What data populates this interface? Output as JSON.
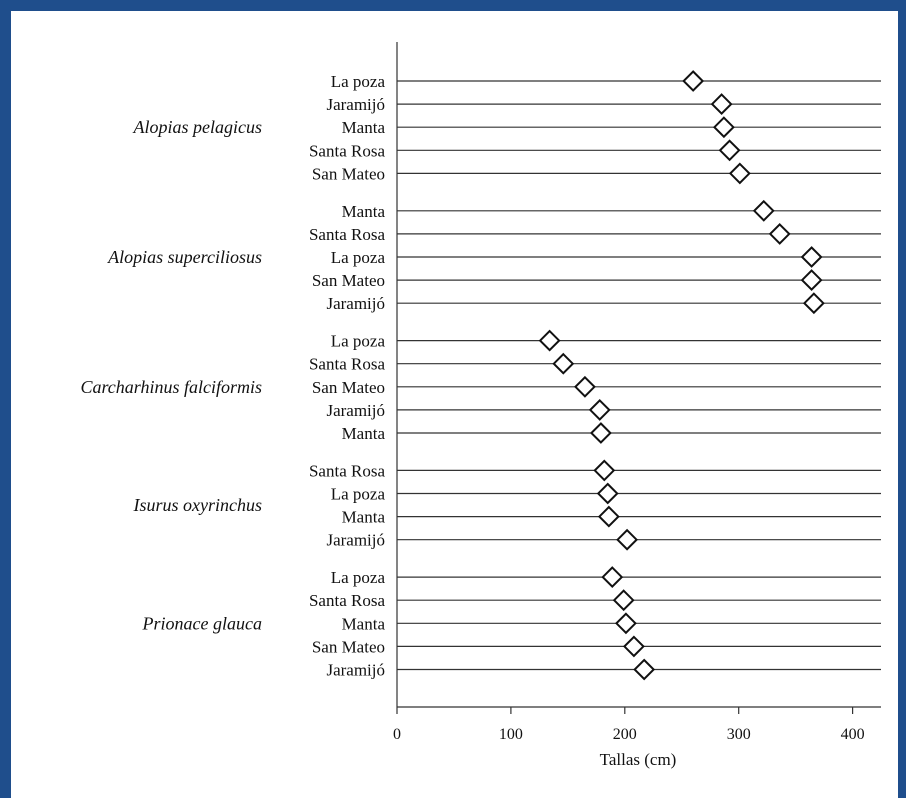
{
  "chart_data": {
    "type": "dot",
    "title": "",
    "xlabel": "Tallas (cm)",
    "xlim": [
      0,
      425
    ],
    "xticks": [
      0,
      100,
      200,
      300,
      400
    ],
    "marker": "open-diamond",
    "groups": [
      {
        "species": "Alopias pelagicus",
        "rows": [
          {
            "site": "La poza",
            "value": 260
          },
          {
            "site": "Jaramijó",
            "value": 285
          },
          {
            "site": "Manta",
            "value": 287
          },
          {
            "site": "Santa Rosa",
            "value": 292
          },
          {
            "site": "San Mateo",
            "value": 301
          }
        ]
      },
      {
        "species": "Alopias superciliosus",
        "rows": [
          {
            "site": "Manta",
            "value": 322
          },
          {
            "site": "Santa Rosa",
            "value": 336
          },
          {
            "site": "La poza",
            "value": 364
          },
          {
            "site": "San Mateo",
            "value": 364
          },
          {
            "site": "Jaramijó",
            "value": 366
          }
        ]
      },
      {
        "species": "Carcharhinus falciformis",
        "rows": [
          {
            "site": "La poza",
            "value": 134
          },
          {
            "site": "Santa Rosa",
            "value": 146
          },
          {
            "site": "San Mateo",
            "value": 165
          },
          {
            "site": "Jaramijó",
            "value": 178
          },
          {
            "site": "Manta",
            "value": 179
          }
        ]
      },
      {
        "species": "Isurus oxyrinchus",
        "rows": [
          {
            "site": "Santa Rosa",
            "value": 182
          },
          {
            "site": "La poza",
            "value": 185
          },
          {
            "site": "Manta",
            "value": 186
          },
          {
            "site": "Jaramijó",
            "value": 202
          }
        ]
      },
      {
        "species": "Prionace glauca",
        "rows": [
          {
            "site": "La poza",
            "value": 189
          },
          {
            "site": "Santa Rosa",
            "value": 199
          },
          {
            "site": "Manta",
            "value": 201
          },
          {
            "site": "San Mateo",
            "value": 208
          },
          {
            "site": "Jaramijó",
            "value": 217
          }
        ]
      }
    ]
  },
  "colors": {
    "frame": "#1f4e8c",
    "lines": "#333333",
    "marker_fill": "#ffffff",
    "marker_stroke": "#111111"
  }
}
